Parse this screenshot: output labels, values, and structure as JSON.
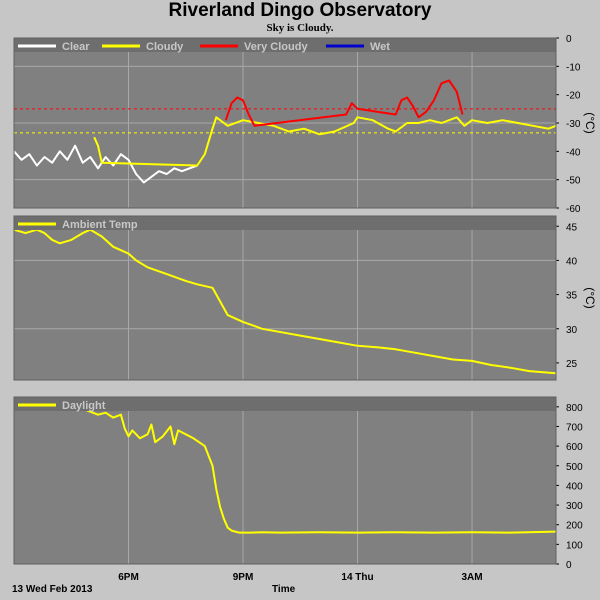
{
  "title": "Riverland Dingo Observatory",
  "subtitle": "Sky is Cloudy.",
  "footer": {
    "date": "13 Wed Feb 2013",
    "xlabel": "Time"
  },
  "colors": {
    "background": "#c6c6c6",
    "plot_bg": "#808080",
    "grid": "#a8a8a8",
    "clear": "#ffffff",
    "cloudy": "#ffff00",
    "very_cloudy": "#ff0000",
    "wet": "#0000cc"
  },
  "x_ticks": [
    "6PM",
    "9PM",
    "14 Thu",
    "3AM"
  ],
  "x_tick_hours": [
    18,
    21,
    24,
    27
  ],
  "x_range_hours": [
    15.0,
    29.2
  ],
  "chart_data": [
    {
      "type": "line",
      "ylabel": "(°C)",
      "ylim": [
        -60,
        0
      ],
      "yticks": [
        0,
        -10,
        -20,
        -30,
        -40,
        -50,
        -60
      ],
      "ref_lines": [
        {
          "value": -25,
          "color": "#ff0000"
        },
        {
          "value": -33.5,
          "color": "#ffff00"
        }
      ],
      "legend": [
        {
          "name": "Clear",
          "color": "#ffffff"
        },
        {
          "name": "Cloudy",
          "color": "#ffff00"
        },
        {
          "name": "Very Cloudy",
          "color": "#ff0000"
        },
        {
          "name": "Wet",
          "color": "#0000cc"
        }
      ],
      "series": [
        {
          "name": "Clear",
          "color": "#ffffff",
          "x": [
            15.0,
            15.2,
            15.4,
            15.6,
            15.8,
            16.0,
            16.2,
            16.4,
            16.6,
            16.8,
            17.0,
            17.2,
            17.4,
            17.6,
            17.8,
            18.0,
            18.2,
            18.4,
            18.6,
            18.8,
            19.0,
            19.2,
            19.4,
            19.6,
            19.8
          ],
          "y": [
            -40,
            -43,
            -41,
            -45,
            -42,
            -44,
            -40,
            -43,
            -38,
            -44,
            -42,
            -46,
            -42,
            -45,
            -41,
            -43,
            -48,
            -51,
            -49,
            -47,
            -48,
            -46,
            -47,
            -46,
            -45
          ]
        },
        {
          "name": "Cloudy",
          "color": "#ffff00",
          "x": [
            17.1,
            17.2,
            17.3,
            19.8,
            20.0,
            20.2,
            20.3,
            20.4,
            20.6,
            21.0,
            21.4,
            21.8,
            22.2,
            22.6,
            23.0,
            23.4,
            23.9,
            24.0,
            24.4,
            24.8,
            25.0,
            25.3,
            25.6,
            25.9,
            26.2,
            26.6,
            26.8,
            27.0,
            27.4,
            27.8,
            28.2,
            28.6,
            29.0,
            29.2
          ],
          "y": [
            -35,
            -38,
            -44,
            -45,
            -41,
            -32,
            -28,
            -29,
            -31,
            -29,
            -30,
            -31,
            -33,
            -32,
            -34,
            -33,
            -30,
            -28,
            -29,
            -32,
            -33,
            -30,
            -30,
            -29,
            -30,
            -28,
            -31,
            -29,
            -30,
            -29,
            -30,
            -31,
            -32,
            -31
          ]
        },
        {
          "name": "Very Cloudy",
          "color": "#ff0000",
          "x": [
            20.55,
            20.7,
            20.85,
            21.0,
            21.15,
            21.3,
            23.7,
            23.85,
            24.0,
            25.0,
            25.15,
            25.3,
            25.45,
            25.6,
            25.8,
            26.0,
            26.2,
            26.4,
            26.6,
            26.75
          ],
          "y": [
            -29,
            -23,
            -21,
            -22,
            -27,
            -31,
            -27,
            -23,
            -25,
            -27,
            -22,
            -21,
            -24,
            -28,
            -26,
            -22,
            -16,
            -15,
            -19,
            -27
          ]
        }
      ]
    },
    {
      "type": "line",
      "ylabel": "(°C)",
      "ylim": [
        22.5,
        46.5
      ],
      "yticks": [
        45,
        40,
        35,
        30,
        25
      ],
      "legend": [
        {
          "name": "Ambient Temp",
          "color": "#ffff00"
        }
      ],
      "series": [
        {
          "name": "Ambient Temp",
          "color": "#ffff00",
          "x": [
            15.0,
            15.3,
            15.6,
            15.8,
            16.0,
            16.2,
            16.5,
            16.8,
            17.0,
            17.3,
            17.6,
            17.8,
            18.0,
            18.2,
            18.5,
            19.0,
            19.5,
            19.8,
            20.2,
            20.4,
            20.6,
            21.0,
            21.5,
            22.0,
            22.5,
            23.0,
            23.5,
            24.0,
            24.5,
            25.0,
            25.5,
            26.0,
            26.5,
            27.0,
            27.5,
            28.0,
            28.5,
            29.2
          ],
          "y": [
            44.5,
            44.0,
            44.5,
            44.0,
            43.0,
            42.5,
            43.0,
            44.0,
            44.5,
            43.5,
            42.0,
            41.5,
            41.0,
            40.0,
            39.0,
            38.0,
            37.0,
            36.5,
            36.0,
            34.0,
            32.0,
            31.0,
            30.0,
            29.5,
            29.0,
            28.5,
            28.0,
            27.5,
            27.3,
            27.0,
            26.5,
            26.0,
            25.5,
            25.3,
            24.7,
            24.3,
            23.8,
            23.5
          ]
        }
      ]
    },
    {
      "type": "line",
      "ylabel": "",
      "ylim": [
        0,
        850
      ],
      "yticks": [
        800,
        700,
        600,
        500,
        400,
        300,
        200,
        100,
        0
      ],
      "legend": [
        {
          "name": "Daylight",
          "color": "#ffff00"
        }
      ],
      "series": [
        {
          "name": "Daylight",
          "color": "#ffff00",
          "x": [
            15.0,
            15.5,
            16.0,
            16.5,
            16.8,
            17.0,
            17.2,
            17.4,
            17.6,
            17.8,
            17.9,
            18.0,
            18.1,
            18.3,
            18.5,
            18.6,
            18.7,
            18.9,
            19.1,
            19.2,
            19.3,
            19.5,
            19.7,
            20.0,
            20.2,
            20.3,
            20.4,
            20.5,
            20.6,
            20.7,
            20.9,
            21.2,
            21.5,
            22.0,
            23.0,
            24.0,
            25.0,
            26.0,
            27.0,
            28.0,
            29.2
          ],
          "y": [
            805,
            800,
            795,
            800,
            790,
            775,
            760,
            770,
            745,
            760,
            690,
            650,
            680,
            640,
            660,
            710,
            620,
            650,
            700,
            610,
            680,
            660,
            640,
            600,
            500,
            380,
            290,
            230,
            185,
            170,
            160,
            160,
            162,
            160,
            162,
            160,
            162,
            160,
            162,
            160,
            165
          ]
        }
      ]
    }
  ]
}
